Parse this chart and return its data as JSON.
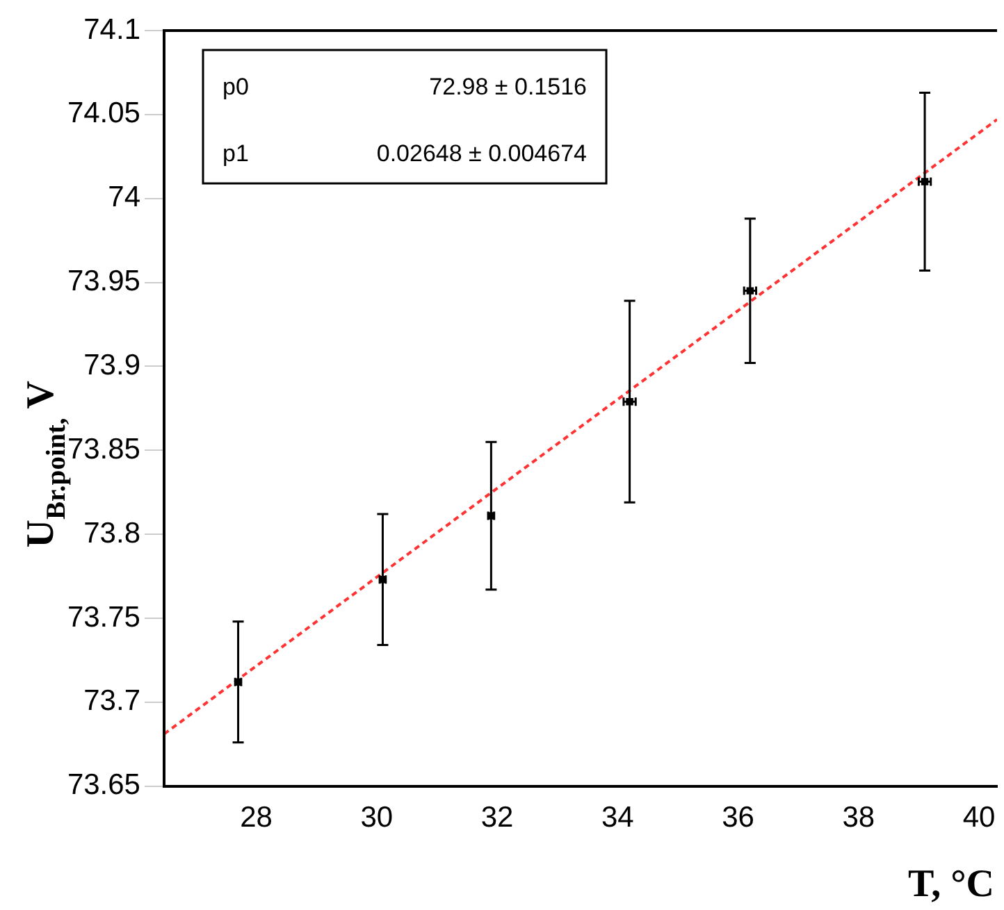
{
  "chart_data": {
    "type": "scatter",
    "xlabel": "T, °C",
    "ylabel": "U$_{Br.point,}$ V",
    "xlim": [
      26.47,
      40.3
    ],
    "xticks": [
      28,
      30,
      32,
      34,
      36,
      38,
      40
    ],
    "ylim": [
      73.65,
      74.1
    ],
    "yticks": [
      73.65,
      73.7,
      73.75,
      73.8,
      73.85,
      73.9,
      73.95,
      74,
      74.05,
      74.1
    ],
    "grid": false,
    "legend": false,
    "marker": "square",
    "annotations": [
      "p0 72.98 ± 0.1516",
      "p1 0.02648 ± 0.004674"
    ],
    "series": [
      {
        "color": "#000000",
        "x": [
          27.7,
          30.1,
          31.9,
          34.2,
          36.2,
          39.1
        ],
        "values": [
          73.712,
          73.773,
          73.811,
          73.879,
          73.945,
          74.01
        ],
        "errors": [
          0.036,
          0.039,
          0.044,
          0.06,
          0.043,
          0.053
        ],
        "xerrors": [
          0.05,
          0.05,
          0.05,
          0.1,
          0.1,
          0.1
        ]
      },
      {
        "type": "line",
        "color": "#ff3333",
        "line_style": "dashed",
        "marker": "none",
        "x": [
          26.47,
          40.3
        ],
        "values": [
          73.681,
          74.047
        ]
      }
    ]
  }
}
